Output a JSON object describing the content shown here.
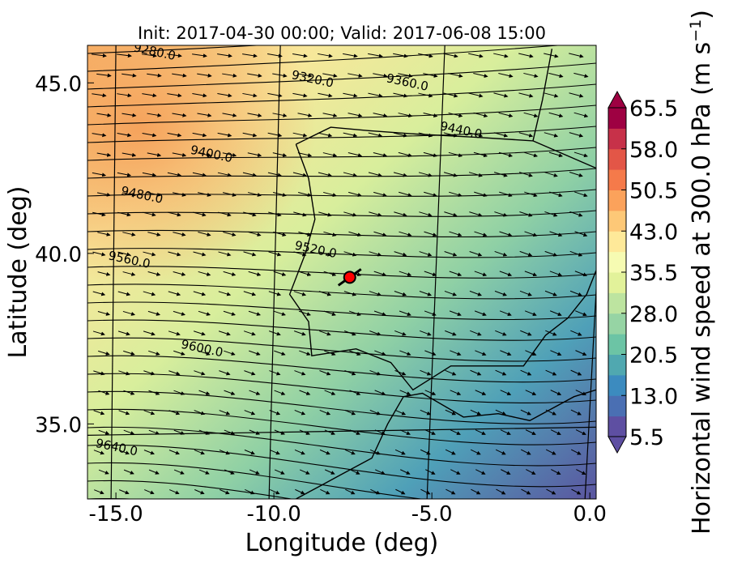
{
  "title": "Init: 2017-04-30 00:00; Valid: 2017-06-08 15:00",
  "axes": {
    "xlabel": "Longitude (deg)",
    "ylabel": "Latitude (deg)",
    "xlim": [
      -15.9,
      0.2
    ],
    "ylim": [
      32.8,
      46.1
    ],
    "xticks": [
      {
        "value": -15.0,
        "label": "-15.0"
      },
      {
        "value": -10.0,
        "label": "-10.0"
      },
      {
        "value": -5.0,
        "label": "-5.0"
      },
      {
        "value": 0.0,
        "label": "0.0"
      }
    ],
    "yticks": [
      {
        "value": 45.0,
        "label": "45.0"
      },
      {
        "value": 40.0,
        "label": "40.0"
      },
      {
        "value": 35.0,
        "label": "35.0"
      }
    ]
  },
  "colorbar": {
    "label": "Horizontal wind speed at 300.0 hPa (m s",
    "label_exp": "−1",
    "label_end": ")",
    "min": 5.5,
    "max": 65.5,
    "tick_values": [
      5.5,
      13.0,
      20.5,
      28.0,
      35.5,
      43.0,
      50.5,
      58.0,
      65.5
    ],
    "tick_labels": [
      "5.5",
      "13.0",
      "20.5",
      "28.0",
      "35.5",
      "43.0",
      "50.5",
      "58.0",
      "65.5"
    ],
    "colors": [
      "#5e4fa2",
      "#4a6fb3",
      "#3c8bbf",
      "#50a8b0",
      "#6cc4a5",
      "#96d4a4",
      "#bde4a0",
      "#e2f29a",
      "#f6fbb2",
      "#fee999",
      "#fdc877",
      "#fba25b",
      "#f57a4a",
      "#e35647",
      "#c73149",
      "#9e0142"
    ]
  },
  "chart_data": {
    "type": "map",
    "title": "Init: 2017-04-30 00:00; Valid: 2017-06-08 15:00",
    "xlabel": "Longitude (deg)",
    "ylabel": "Latitude (deg)",
    "contour_labels": [
      {
        "label": "9280.0",
        "lon": -13.8,
        "lat": 45.8
      },
      {
        "label": "9320.0",
        "lon": -8.8,
        "lat": 45.0
      },
      {
        "label": "9360.0",
        "lon": -5.8,
        "lat": 44.9
      },
      {
        "label": "9440.0",
        "lon": -4.1,
        "lat": 43.5
      },
      {
        "label": "9400.0",
        "lon": -12.0,
        "lat": 42.8
      },
      {
        "label": "9480.0",
        "lon": -14.2,
        "lat": 41.6
      },
      {
        "label": "9520.0",
        "lon": -8.7,
        "lat": 40.0
      },
      {
        "label": "9560.0",
        "lon": -14.6,
        "lat": 39.7
      },
      {
        "label": "9600.0",
        "lon": -12.3,
        "lat": 37.1
      },
      {
        "label": "9640.0",
        "lon": -15.0,
        "lat": 34.2
      }
    ],
    "marker": {
      "lon": -7.6,
      "lat": 39.3,
      "color": "#ff0000"
    }
  }
}
